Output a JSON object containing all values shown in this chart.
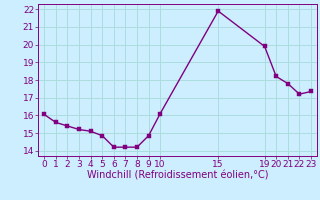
{
  "x": [
    0,
    1,
    2,
    3,
    4,
    5,
    6,
    7,
    8,
    9,
    10,
    15,
    19,
    20,
    21,
    22,
    23
  ],
  "y": [
    16.05,
    15.6,
    15.4,
    15.2,
    15.1,
    14.85,
    14.2,
    14.2,
    14.2,
    14.85,
    16.1,
    21.9,
    19.9,
    18.2,
    17.8,
    17.2,
    17.35
  ],
  "line_color": "#800080",
  "marker_color": "#800080",
  "bg_color": "#cceeff",
  "grid_color": "#aadddd",
  "xlabel": "Windchill (Refroidissement éolien,°C)",
  "xlim": [
    -0.5,
    23.5
  ],
  "ylim": [
    13.7,
    22.3
  ],
  "xticks": [
    0,
    1,
    2,
    3,
    4,
    5,
    6,
    7,
    8,
    9,
    10,
    15,
    19,
    20,
    21,
    22,
    23
  ],
  "yticks": [
    14,
    15,
    16,
    17,
    18,
    19,
    20,
    21,
    22
  ],
  "tick_color": "#800080",
  "tick_fontsize": 6.5,
  "xlabel_fontsize": 7.0,
  "line_width": 1.0,
  "marker_size": 2.5
}
